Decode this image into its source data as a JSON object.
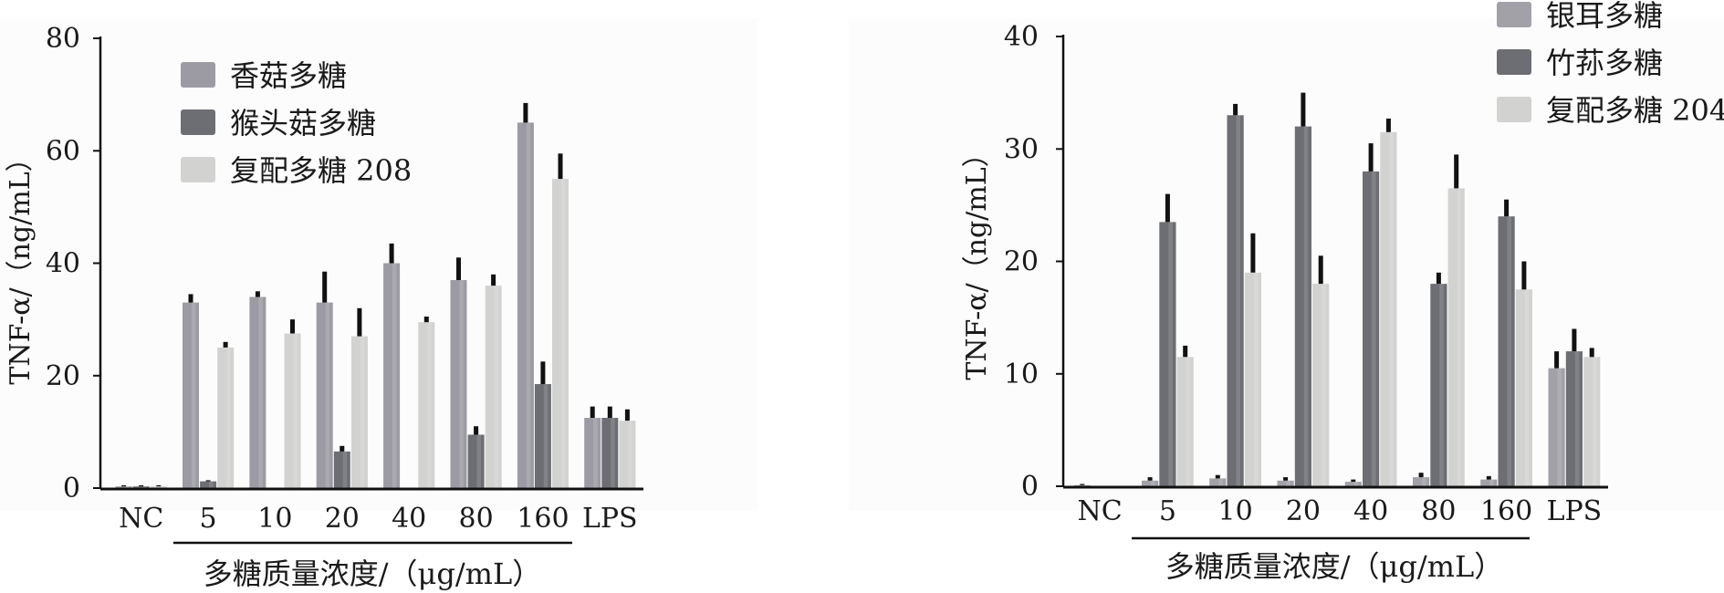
{
  "chart_data": [
    {
      "type": "bar",
      "ylabel": "TNF-α/（ng/mL）",
      "xlabel": "多糖质量浓度/（μg/mL）",
      "ylim": [
        0,
        80
      ],
      "yticks": [
        "0",
        "20",
        "40",
        "60",
        "80"
      ],
      "categories": [
        "NC",
        "5",
        "10",
        "20",
        "40",
        "80",
        "160",
        "LPS"
      ],
      "legend_position": "top-left",
      "grid": false,
      "error_bars": true,
      "series": [
        {
          "name": "香菇多糖",
          "color": "#9c9ba3",
          "values": [
            0.3,
            33,
            34,
            33,
            40,
            37,
            65,
            12.5
          ],
          "errors": [
            0.2,
            1.5,
            1,
            5.5,
            3.5,
            4,
            3.5,
            2
          ]
        },
        {
          "name": "猴头菇多糖",
          "color": "#6d6e73",
          "values": [
            0.3,
            1.2,
            0,
            6.5,
            0,
            9.5,
            18.5,
            12.5
          ],
          "errors": [
            0.2,
            0.2,
            0,
            1,
            0,
            1.5,
            4,
            2
          ]
        },
        {
          "name": "复配多糖 208",
          "color": "#d2d2d0",
          "values": [
            0.3,
            25,
            27.5,
            27,
            29.5,
            36,
            55,
            12
          ],
          "errors": [
            0.2,
            1,
            2.5,
            5,
            1,
            2,
            4.5,
            2
          ]
        }
      ]
    },
    {
      "type": "bar",
      "ylabel": "TNF-α/（ng/mL）",
      "xlabel": "多糖质量浓度/（μg/mL）",
      "ylim": [
        0,
        40
      ],
      "yticks": [
        "0",
        "10",
        "20",
        "30",
        "40"
      ],
      "categories": [
        "NC",
        "5",
        "10",
        "20",
        "40",
        "80",
        "160",
        "LPS"
      ],
      "legend_position": "top-right",
      "grid": false,
      "error_bars": true,
      "series": [
        {
          "name": "银耳多糖",
          "color": "#a2a1a8",
          "values": [
            0.1,
            0.5,
            0.7,
            0.5,
            0.4,
            0.8,
            0.6,
            10.5
          ],
          "errors": [
            0.1,
            0.3,
            0.3,
            0.3,
            0.2,
            0.4,
            0.3,
            1.5
          ]
        },
        {
          "name": "竹荪多糖",
          "color": "#6d6e73",
          "values": [
            0,
            23.5,
            33,
            32,
            28,
            18,
            24,
            12
          ],
          "errors": [
            0,
            2.5,
            1,
            3,
            2.5,
            1,
            1.5,
            2
          ]
        },
        {
          "name": "复配多糖 204",
          "color": "#d2d2d0",
          "values": [
            0,
            11.5,
            19,
            18,
            31.5,
            26.5,
            17.5,
            11.5
          ],
          "errors": [
            0,
            1,
            3.5,
            2.5,
            1.2,
            3,
            2.5,
            0.8
          ]
        }
      ]
    }
  ]
}
